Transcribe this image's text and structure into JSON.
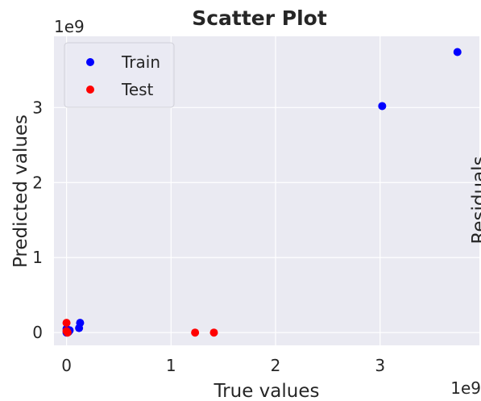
{
  "chart_data": {
    "type": "scatter",
    "title": "Scatter Plot",
    "xlabel": "True values",
    "ylabel": "Predicted values",
    "x_offset_text": "1e9",
    "y_offset_text": "1e9",
    "clipped_label": "Residuals",
    "xlim": [
      -0.12,
      3.95
    ],
    "ylim": [
      -0.17,
      3.95
    ],
    "xticks": [
      0,
      1,
      2,
      3
    ],
    "yticks": [
      0,
      1,
      2,
      3
    ],
    "grid": true,
    "legend_position": "upper-left",
    "series": [
      {
        "name": "Train",
        "color": "#0000ff",
        "points": [
          [
            3.74,
            3.74
          ],
          [
            3.02,
            3.02
          ],
          [
            0.13,
            0.13
          ],
          [
            0.12,
            0.06
          ],
          [
            0.0,
            0.05
          ],
          [
            0.01,
            0.02
          ],
          [
            0.02,
            0.01
          ],
          [
            0.0,
            0.0
          ],
          [
            0.03,
            0.03
          ]
        ]
      },
      {
        "name": "Test",
        "color": "#ff0000",
        "points": [
          [
            1.41,
            0.0
          ],
          [
            1.23,
            0.0
          ],
          [
            0.0,
            0.13
          ],
          [
            0.01,
            0.0
          ],
          [
            0.0,
            0.02
          ]
        ]
      }
    ]
  }
}
